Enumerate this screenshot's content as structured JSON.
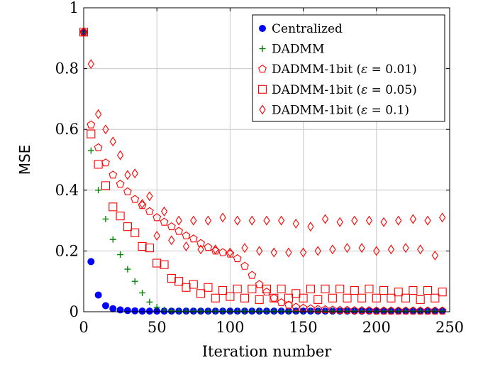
{
  "chart_data": {
    "type": "scatter",
    "title": "",
    "xlabel": "Iteration number",
    "ylabel": "MSE",
    "xlim": [
      0,
      250
    ],
    "ylim": [
      0,
      1
    ],
    "xticks": [
      0,
      50,
      100,
      150,
      200,
      250
    ],
    "yticks": [
      0,
      0.2,
      0.4,
      0.6,
      0.8,
      1
    ],
    "xtick_labels": [
      "0",
      "50",
      "100",
      "150",
      "200",
      "250"
    ],
    "ytick_labels": [
      "0",
      "0.2",
      "0.4",
      "0.6",
      "0.8",
      "1"
    ],
    "grid": true,
    "legend_position": "top-right",
    "series": [
      {
        "name": "Centralized",
        "marker": "filled-circle",
        "color": "#0000ff",
        "x": [
          0,
          5,
          10,
          15,
          20,
          25,
          30,
          35,
          40,
          45,
          50,
          55,
          60,
          65,
          70,
          75,
          80,
          85,
          90,
          95,
          100,
          105,
          110,
          115,
          120,
          125,
          130,
          135,
          140,
          145,
          150,
          155,
          160,
          165,
          170,
          175,
          180,
          185,
          190,
          195,
          200,
          205,
          210,
          215,
          220,
          225,
          230,
          235,
          240,
          245
        ],
        "y": [
          0.92,
          0.165,
          0.055,
          0.02,
          0.01,
          0.006,
          0.004,
          0.003,
          0.002,
          0.002,
          0.002,
          0.002,
          0.002,
          0.002,
          0.002,
          0.002,
          0.002,
          0.002,
          0.002,
          0.002,
          0.002,
          0.002,
          0.002,
          0.002,
          0.002,
          0.002,
          0.002,
          0.002,
          0.002,
          0.002,
          0.002,
          0.002,
          0.002,
          0.002,
          0.002,
          0.002,
          0.002,
          0.002,
          0.002,
          0.002,
          0.002,
          0.002,
          0.002,
          0.002,
          0.002,
          0.002,
          0.002,
          0.002,
          0.002,
          0.002
        ]
      },
      {
        "name": "DADMM",
        "marker": "plus",
        "color": "#008000",
        "x": [
          0,
          5,
          10,
          15,
          20,
          25,
          30,
          35,
          40,
          45,
          50,
          55,
          60,
          65,
          70,
          75,
          80,
          85,
          90,
          95,
          100,
          105,
          110,
          115,
          120,
          125,
          130,
          135,
          140,
          145,
          150,
          155,
          160,
          165,
          170,
          175,
          180,
          185,
          190,
          195,
          200,
          205,
          210,
          215,
          220,
          225,
          230,
          235,
          240,
          245
        ],
        "y": [
          0.92,
          0.53,
          0.4,
          0.305,
          0.238,
          0.188,
          0.14,
          0.1,
          0.062,
          0.032,
          0.015,
          0.006,
          0.003,
          0.002,
          0.002,
          0.002,
          0.002,
          0.002,
          0.002,
          0.002,
          0.002,
          0.002,
          0.002,
          0.002,
          0.002,
          0.002,
          0.002,
          0.002,
          0.002,
          0.002,
          0.002,
          0.002,
          0.002,
          0.002,
          0.002,
          0.002,
          0.002,
          0.002,
          0.002,
          0.002,
          0.002,
          0.002,
          0.002,
          0.002,
          0.002,
          0.002,
          0.002,
          0.002,
          0.002,
          0.002
        ]
      },
      {
        "name": "DADMM-1bit (ε = 0.01)",
        "legend_prefix": "DADMM-1bit (",
        "legend_eps": "ε",
        "legend_suffix": " = 0.01)",
        "marker": "pentagon",
        "color": "#ff0000",
        "x": [
          0,
          5,
          10,
          15,
          20,
          25,
          30,
          35,
          40,
          45,
          50,
          55,
          60,
          65,
          70,
          75,
          80,
          85,
          90,
          95,
          100,
          105,
          110,
          115,
          120,
          125,
          130,
          135,
          140,
          145,
          150,
          155,
          160,
          165,
          170,
          175,
          180,
          185,
          190,
          195,
          200,
          205,
          210,
          215,
          220,
          225,
          230,
          235,
          240,
          245
        ],
        "y": [
          0.92,
          0.615,
          0.54,
          0.49,
          0.45,
          0.42,
          0.395,
          0.37,
          0.35,
          0.33,
          0.31,
          0.295,
          0.28,
          0.265,
          0.25,
          0.24,
          0.225,
          0.212,
          0.2,
          0.195,
          0.19,
          0.175,
          0.15,
          0.12,
          0.09,
          0.065,
          0.045,
          0.03,
          0.022,
          0.015,
          0.012,
          0.01,
          0.008,
          0.007,
          0.006,
          0.005,
          0.005,
          0.004,
          0.004,
          0.004,
          0.003,
          0.003,
          0.003,
          0.003,
          0.003,
          0.003,
          0.003,
          0.003,
          0.003,
          0.003
        ]
      },
      {
        "name": "DADMM-1bit (ε = 0.05)",
        "legend_prefix": "DADMM-1bit (",
        "legend_eps": "ε",
        "legend_suffix": " = 0.05)",
        "marker": "square",
        "color": "#ff0000",
        "x": [
          0,
          5,
          10,
          15,
          20,
          25,
          30,
          35,
          40,
          45,
          50,
          55,
          60,
          65,
          70,
          75,
          80,
          85,
          90,
          95,
          100,
          105,
          110,
          115,
          120,
          125,
          130,
          135,
          140,
          145,
          150,
          155,
          160,
          165,
          170,
          175,
          180,
          185,
          190,
          195,
          200,
          205,
          210,
          215,
          220,
          225,
          230,
          235,
          240,
          245
        ],
        "y": [
          0.92,
          0.585,
          0.485,
          0.415,
          0.345,
          0.315,
          0.28,
          0.26,
          0.215,
          0.21,
          0.16,
          0.155,
          0.11,
          0.1,
          0.08,
          0.09,
          0.06,
          0.08,
          0.045,
          0.07,
          0.05,
          0.075,
          0.045,
          0.075,
          0.04,
          0.075,
          0.045,
          0.075,
          0.045,
          0.06,
          0.045,
          0.075,
          0.04,
          0.075,
          0.045,
          0.075,
          0.045,
          0.07,
          0.045,
          0.075,
          0.045,
          0.07,
          0.045,
          0.065,
          0.045,
          0.07,
          0.04,
          0.07,
          0.045,
          0.065
        ]
      },
      {
        "name": "DADMM-1bit (ε = 0.1)",
        "legend_prefix": "DADMM-1bit (",
        "legend_eps": "ε",
        "legend_suffix": " = 0.1)",
        "marker": "diamond",
        "color": "#ff0000",
        "x": [
          0,
          5,
          10,
          15,
          20,
          25,
          30,
          35,
          40,
          45,
          50,
          55,
          60,
          65,
          70,
          75,
          80,
          85,
          90,
          95,
          100,
          105,
          110,
          115,
          120,
          125,
          130,
          135,
          140,
          145,
          150,
          155,
          160,
          165,
          170,
          175,
          180,
          185,
          190,
          195,
          200,
          205,
          210,
          215,
          220,
          225,
          230,
          235,
          240,
          245
        ],
        "y": [
          0.92,
          0.815,
          0.65,
          0.6,
          0.56,
          0.515,
          0.45,
          0.455,
          0.355,
          0.38,
          0.25,
          0.33,
          0.235,
          0.3,
          0.215,
          0.3,
          0.205,
          0.3,
          0.205,
          0.31,
          0.195,
          0.3,
          0.21,
          0.3,
          0.2,
          0.3,
          0.195,
          0.3,
          0.195,
          0.29,
          0.195,
          0.28,
          0.2,
          0.305,
          0.205,
          0.295,
          0.21,
          0.3,
          0.21,
          0.3,
          0.2,
          0.295,
          0.205,
          0.3,
          0.21,
          0.305,
          0.205,
          0.3,
          0.185,
          0.31
        ]
      }
    ]
  }
}
